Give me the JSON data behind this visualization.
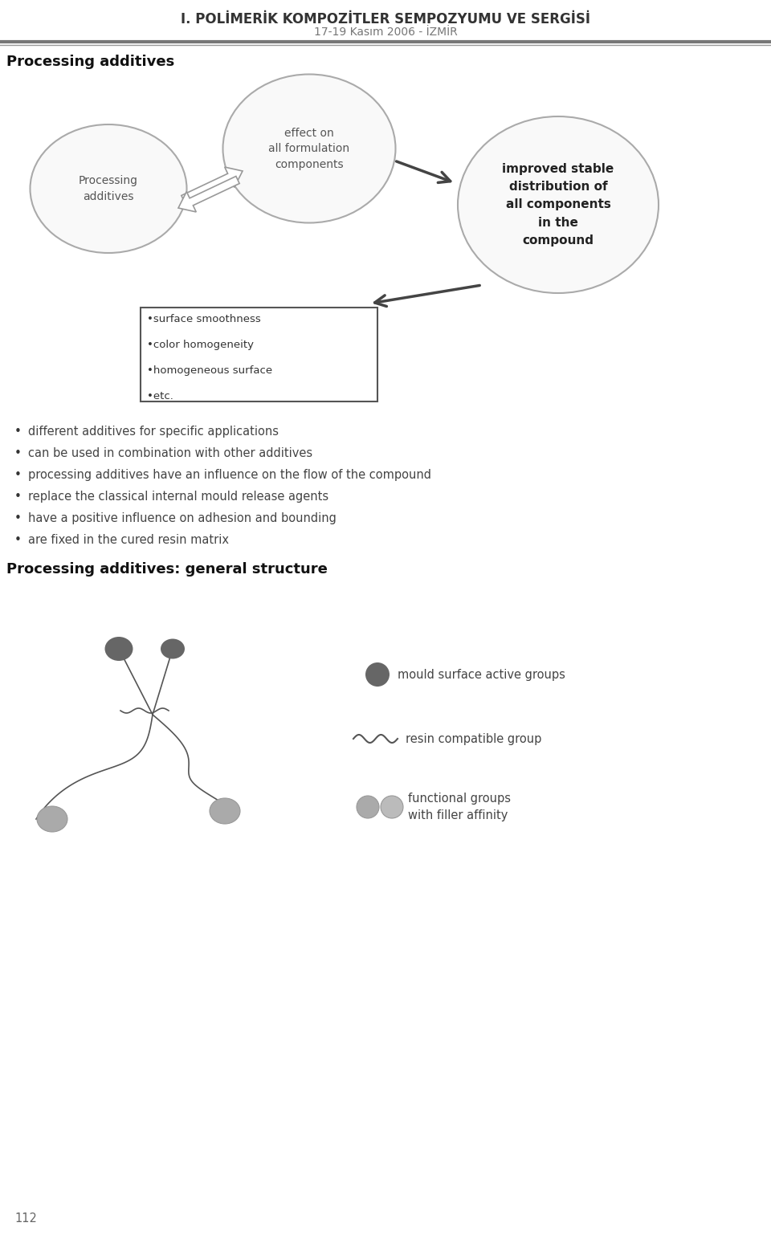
{
  "title_line1": "I. POLİMERİK KOMPOZİTLER SEMPOZYUMU VE SERGİSİ",
  "title_line2": "17-19 Kasım 2006 - İZMİR",
  "section_title": "Processing additives",
  "bg_color": "#ffffff",
  "circle1_text": "Processing\nadditives",
  "circle2_text": "effect on\nall formulation\ncomponents",
  "circle3_text": "improved stable\ndistribution of\nall components\nin the\ncompound",
  "box_text": "•surface smoothness\n\n•color homogeneity\n\n•homogeneous surface\n\n•etc.",
  "bullet_items": [
    "different additives for specific applications",
    "can be used in combination with other additives",
    "processing additives have an influence on the flow of the compound",
    "replace the classical internal mould release agents",
    "have a positive influence on adhesion and bounding",
    "are fixed in the cured resin matrix"
  ],
  "section2_title": "Processing additives: general structure",
  "legend_dark": "mould surface active groups",
  "legend_wavy": "resin compatible group",
  "legend_light": "functional groups\nwith filler affinity",
  "page_number": "112",
  "dark_circle_color": "#666666",
  "light_circle_color": "#aaaaaa",
  "circle_edge_color": "#aaaaaa",
  "text_color": "#555555",
  "header_color": "#333333",
  "arrow_dark": "#444444",
  "arrow_light": "#999999"
}
